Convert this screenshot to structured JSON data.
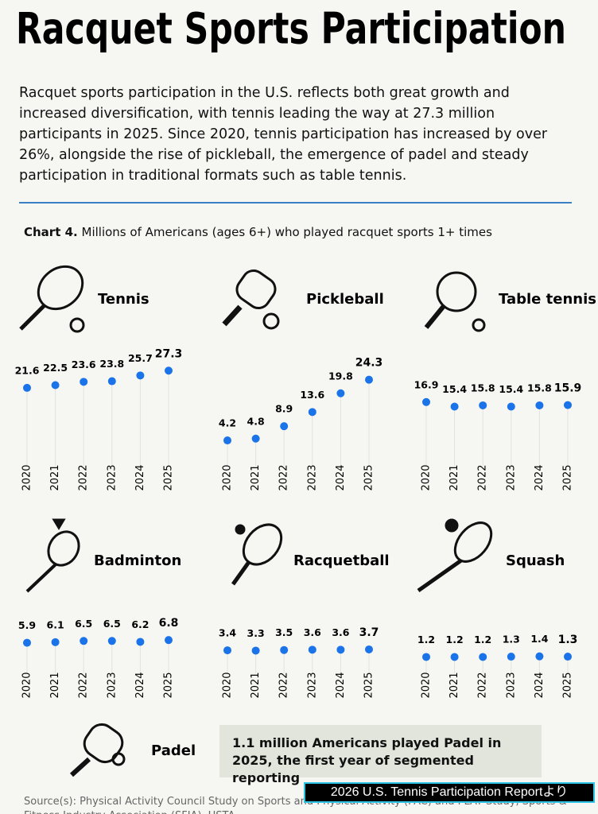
{
  "title": "Racquet Sports Participation",
  "intro": "Racquet sports participation in the U.S. reflects both great growth and increased diversification, with tennis leading the way at 27.3 million participants in 2025. Since 2020, tennis participation has increased by over 26%, alongside the rise of pickleball, the emergence of padel and steady participation in traditional formats such as table tennis.",
  "caption": {
    "label": "Chart 4.",
    "text": "Millions of Americans (ages 6+) who played racquet sports 1+ times"
  },
  "chart_data": [
    {
      "type": "dot",
      "title": "Tennis",
      "categories": [
        "2020",
        "2021",
        "2022",
        "2023",
        "2024",
        "2025"
      ],
      "values": [
        21.6,
        22.5,
        23.6,
        23.8,
        25.7,
        27.3
      ],
      "color": "#1a73e8",
      "ylim": [
        0,
        30
      ]
    },
    {
      "type": "dot",
      "title": "Pickleball",
      "categories": [
        "2020",
        "2021",
        "2022",
        "2023",
        "2024",
        "2025"
      ],
      "values": [
        4.2,
        4.8,
        8.9,
        13.6,
        19.8,
        24.3
      ],
      "color": "#1a73e8",
      "ylim": [
        0,
        30
      ]
    },
    {
      "type": "dot",
      "title": "Table tennis",
      "categories": [
        "2020",
        "2021",
        "2022",
        "2023",
        "2024",
        "2025"
      ],
      "values": [
        16.9,
        15.4,
        15.8,
        15.4,
        15.8,
        15.9
      ],
      "color": "#1a73e8",
      "ylim": [
        0,
        30
      ]
    },
    {
      "type": "dot",
      "title": "Badminton",
      "categories": [
        "2020",
        "2021",
        "2022",
        "2023",
        "2024",
        "2025"
      ],
      "values": [
        5.9,
        6.1,
        6.5,
        6.5,
        6.2,
        6.8
      ],
      "color": "#1a73e8",
      "ylim": [
        0,
        30
      ]
    },
    {
      "type": "dot",
      "title": "Racquetball",
      "categories": [
        "2020",
        "2021",
        "2022",
        "2023",
        "2024",
        "2025"
      ],
      "values": [
        3.4,
        3.3,
        3.5,
        3.6,
        3.6,
        3.7
      ],
      "color": "#1a73e8",
      "ylim": [
        0,
        30
      ]
    },
    {
      "type": "dot",
      "title": "Squash",
      "categories": [
        "2020",
        "2021",
        "2022",
        "2023",
        "2024",
        "2025"
      ],
      "values": [
        1.2,
        1.2,
        1.2,
        1.3,
        1.4,
        1.3
      ],
      "color": "#1a73e8",
      "ylim": [
        0,
        30
      ]
    }
  ],
  "padel": {
    "title": "Padel",
    "note": "1.1 million Americans played Padel in 2025, the first year of segmented reporting"
  },
  "source": "Source(s): Physical Activity Council Study on Sports and Physical Activity (PAC) and PLAY Study, Sports & Fitness Industry Association (SFIA), USTA",
  "badge": "2026 U.S. Tennis Participation Reportより"
}
